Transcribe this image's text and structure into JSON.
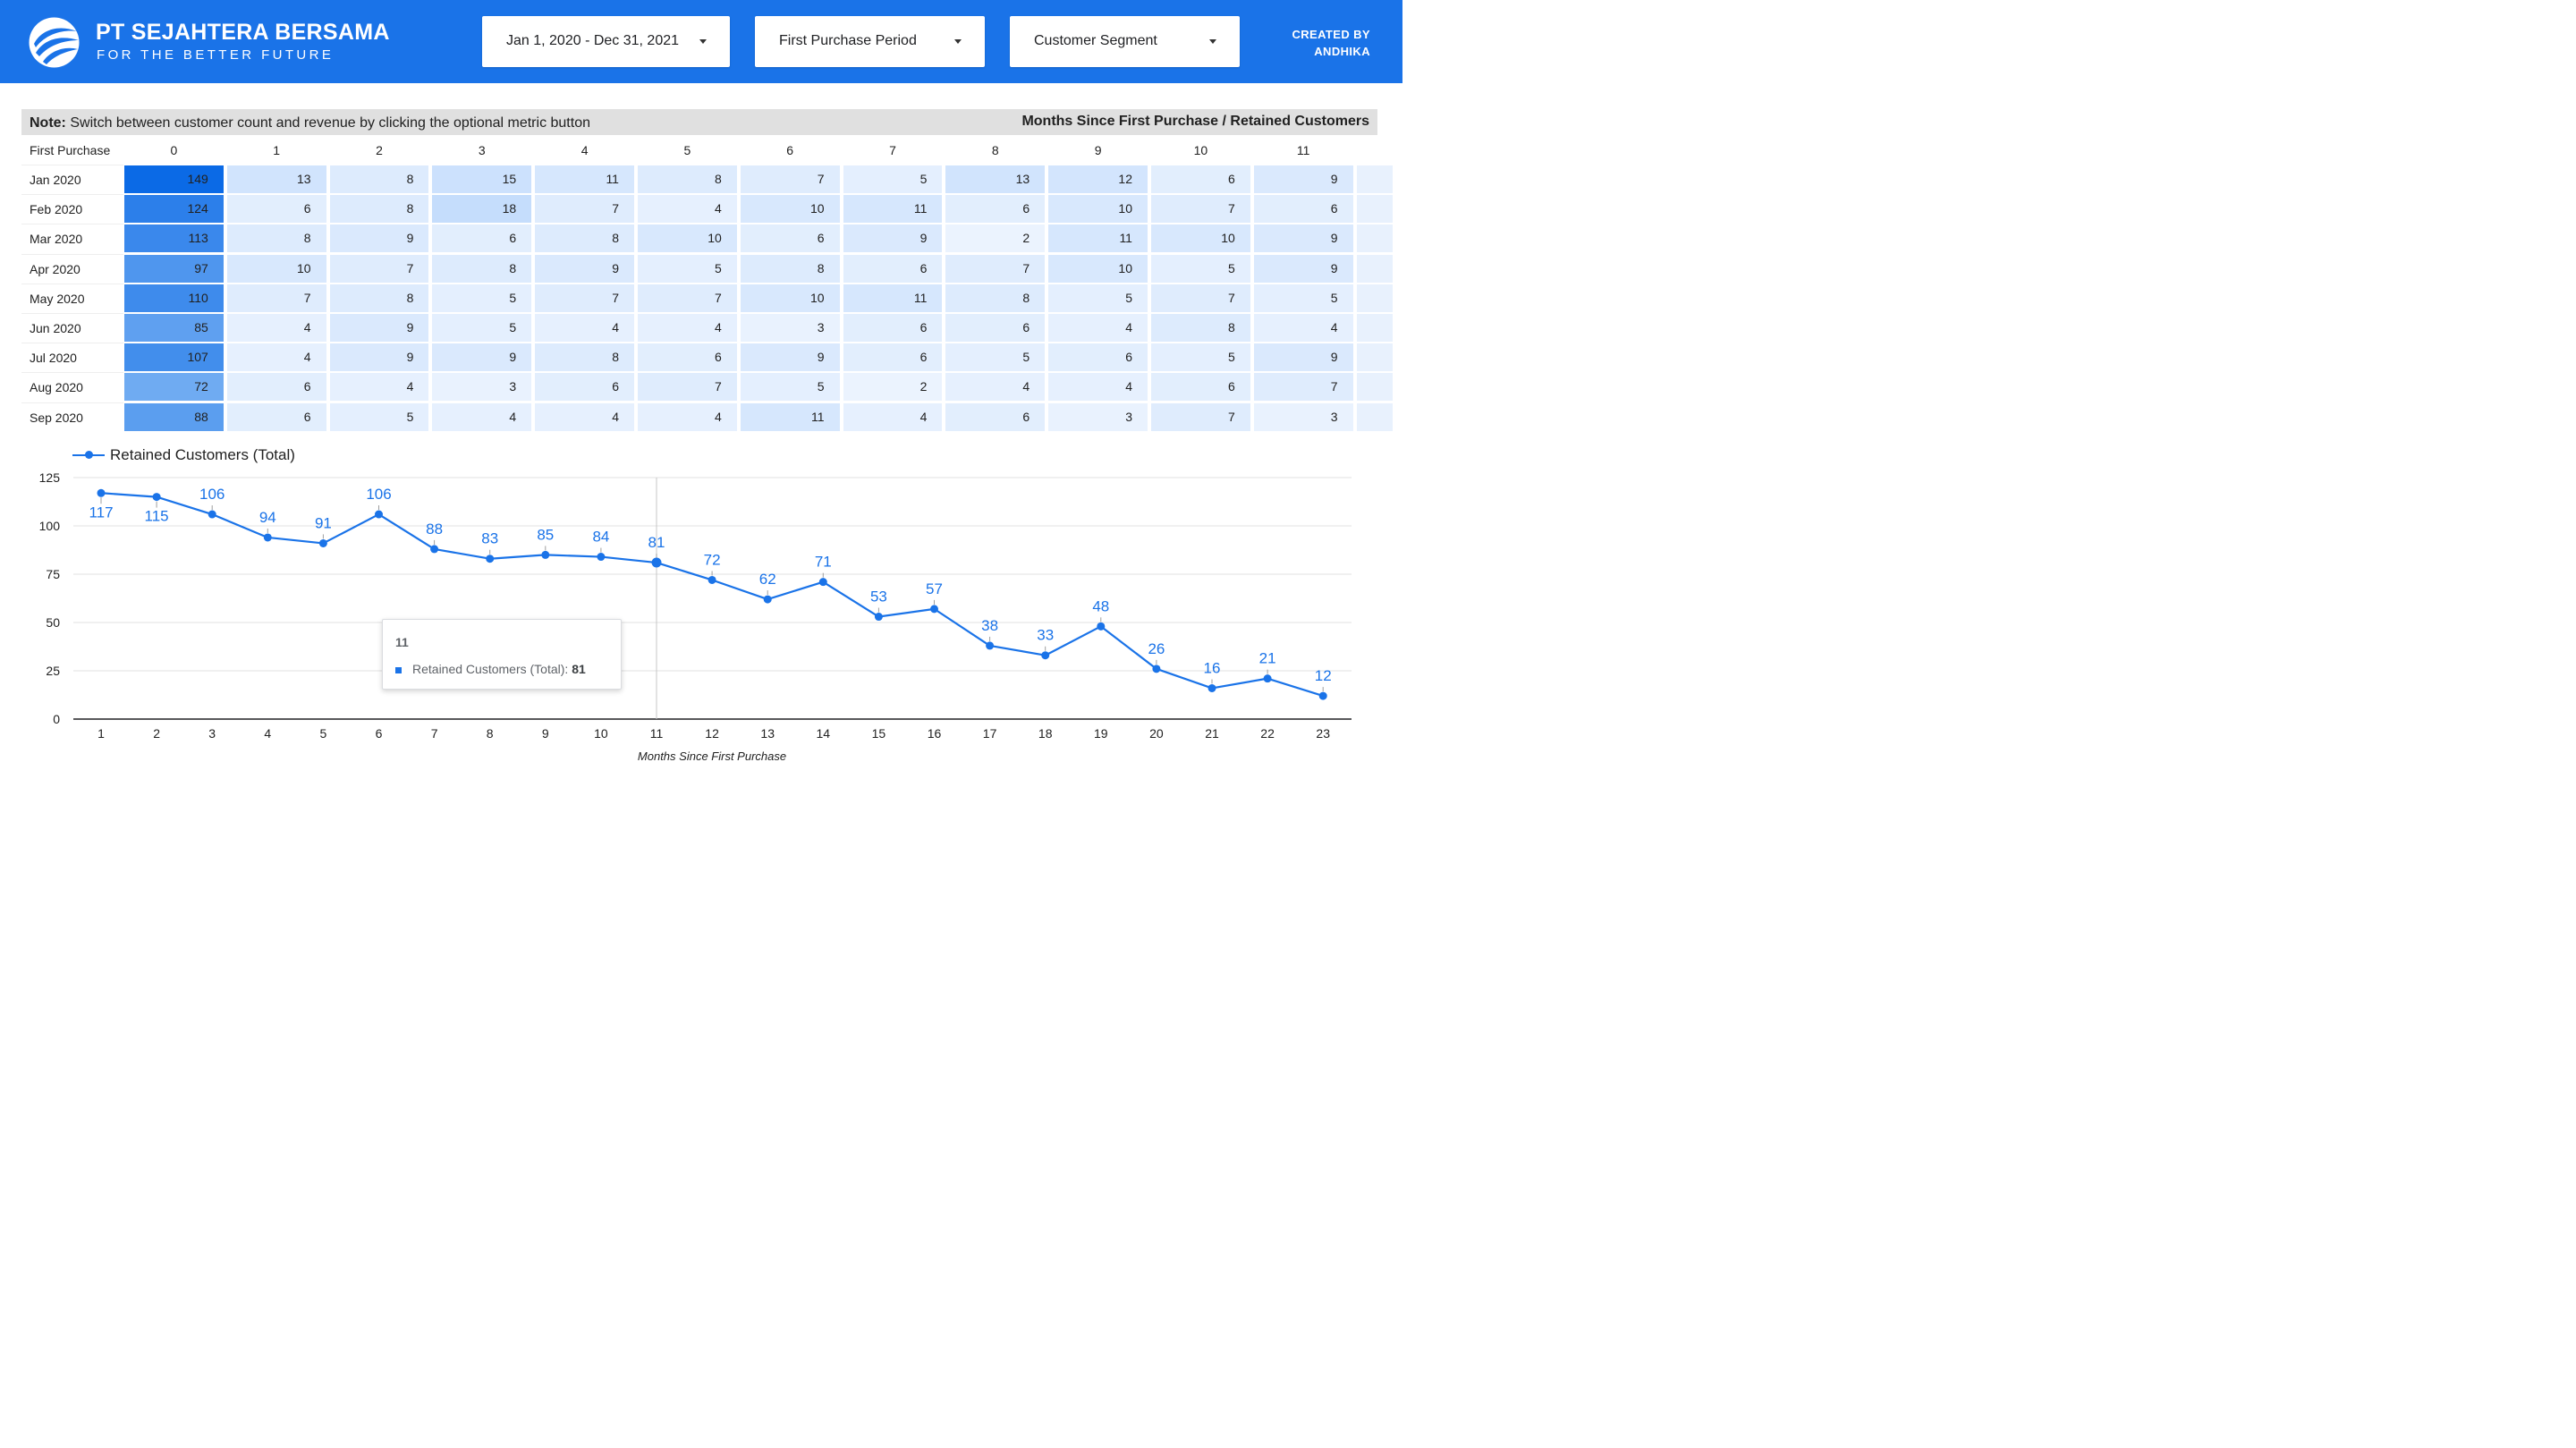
{
  "header": {
    "brand_title": "PT SEJAHTERA BERSAMA",
    "brand_subtitle": "FOR THE BETTER FUTURE",
    "brand_color": "#1a73e8",
    "filters": {
      "date_range": "Jan 1, 2020 - Dec 31, 2021",
      "first_purchase_period": "First Purchase Period",
      "customer_segment": "Customer Segment"
    },
    "created_by_line1": "CREATED BY",
    "created_by_line2": "ANDHIKA"
  },
  "cohort_table": {
    "note_bold": "Note:",
    "note_text": " Switch between customer count and revenue by clicking the optional metric button",
    "metric_header": "Months Since First Purchase / Retained Customers",
    "row_header": "First Purchase",
    "columns": [
      "0",
      "1",
      "2",
      "3",
      "4",
      "5",
      "6",
      "7",
      "8",
      "9",
      "10",
      "11"
    ],
    "rows": [
      {
        "label": "Jan 2020",
        "values": [
          149,
          13,
          8,
          15,
          11,
          8,
          7,
          5,
          13,
          12,
          6,
          9
        ]
      },
      {
        "label": "Feb 2020",
        "values": [
          124,
          6,
          8,
          18,
          7,
          4,
          10,
          11,
          6,
          10,
          7,
          6
        ]
      },
      {
        "label": "Mar 2020",
        "values": [
          113,
          8,
          9,
          6,
          8,
          10,
          6,
          9,
          2,
          11,
          10,
          9
        ]
      },
      {
        "label": "Apr 2020",
        "values": [
          97,
          10,
          7,
          8,
          9,
          5,
          8,
          6,
          7,
          10,
          5,
          9
        ]
      },
      {
        "label": "May 2020",
        "values": [
          110,
          7,
          8,
          5,
          7,
          7,
          10,
          11,
          8,
          5,
          7,
          5
        ]
      },
      {
        "label": "Jun 2020",
        "values": [
          85,
          4,
          9,
          5,
          4,
          4,
          3,
          6,
          6,
          4,
          8,
          4
        ]
      },
      {
        "label": "Jul 2020",
        "values": [
          107,
          4,
          9,
          9,
          8,
          6,
          9,
          6,
          5,
          6,
          5,
          9
        ]
      },
      {
        "label": "Aug 2020",
        "values": [
          72,
          6,
          4,
          3,
          6,
          7,
          5,
          2,
          4,
          4,
          6,
          7
        ]
      },
      {
        "label": "Sep 2020",
        "values": [
          88,
          6,
          5,
          4,
          4,
          4,
          11,
          4,
          6,
          3,
          7,
          3
        ]
      }
    ]
  },
  "chart_data": {
    "type": "line",
    "title": "",
    "series": [
      {
        "name": "Retained Customers (Total)",
        "values": [
          117,
          115,
          106,
          94,
          91,
          106,
          88,
          83,
          85,
          84,
          81,
          72,
          62,
          71,
          53,
          57,
          38,
          33,
          48,
          26,
          16,
          21,
          12
        ]
      }
    ],
    "x": [
      1,
      2,
      3,
      4,
      5,
      6,
      7,
      8,
      9,
      10,
      11,
      12,
      13,
      14,
      15,
      16,
      17,
      18,
      19,
      20,
      21,
      22,
      23
    ],
    "xlabel": "Months Since First Purchase",
    "ylabel": "",
    "ylim": [
      0,
      125
    ],
    "yticks": [
      0,
      25,
      50,
      75,
      100,
      125
    ],
    "grid": true,
    "legend": "top-left",
    "hover_x": 11,
    "line_color": "#1a73e8"
  },
  "tooltip": {
    "title": "11",
    "series_label": "Retained Customers (Total): ",
    "value": "81"
  }
}
